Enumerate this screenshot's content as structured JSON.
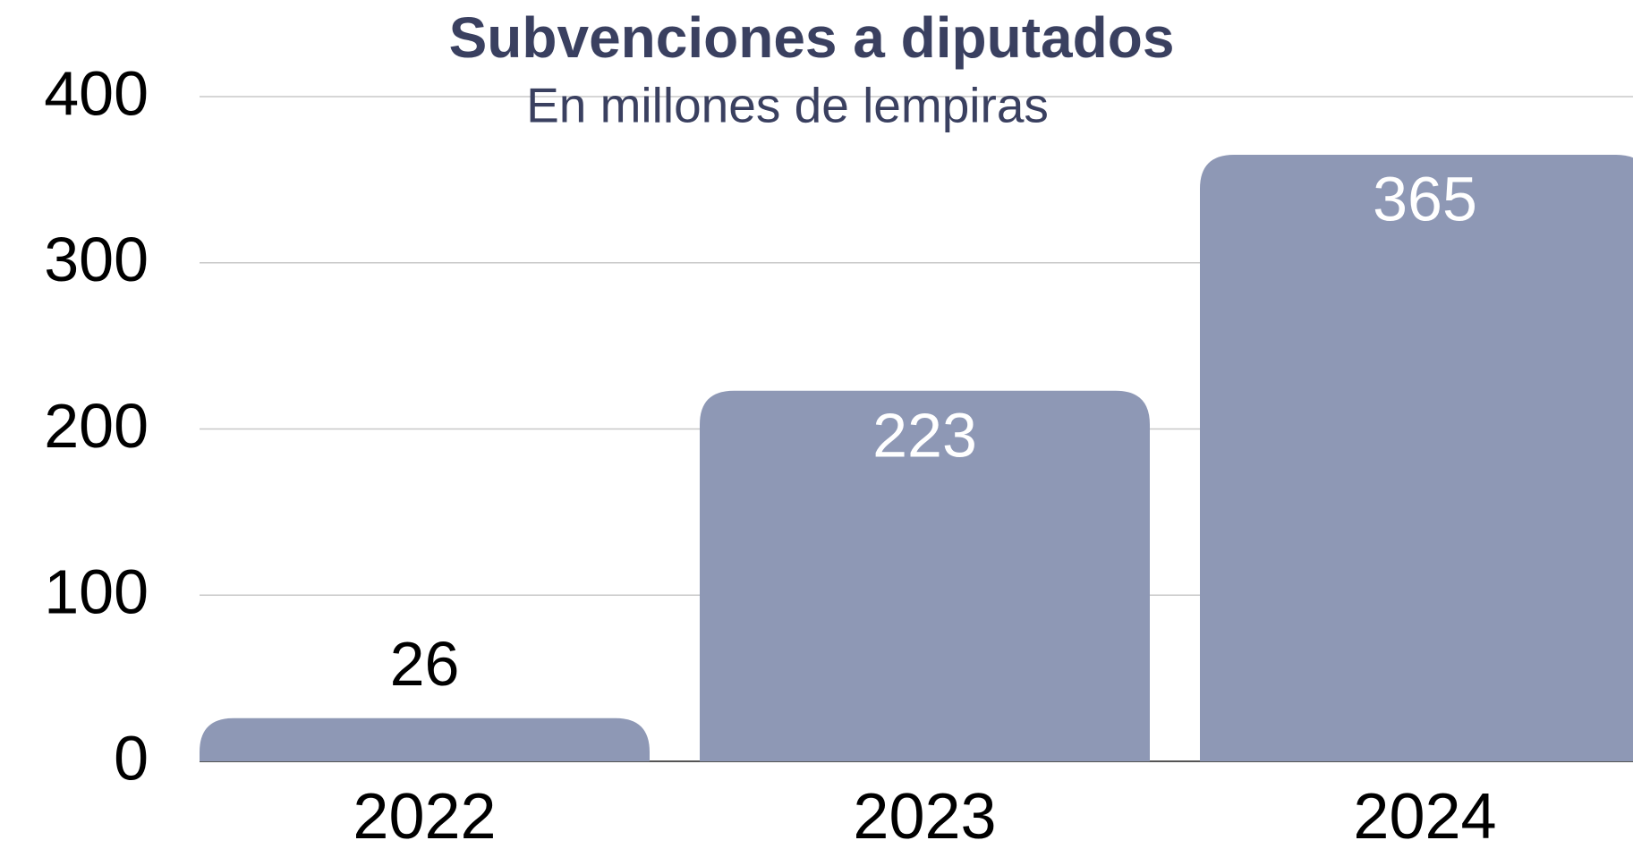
{
  "chart_data": {
    "type": "bar",
    "title": "Subvenciones a diputados",
    "subtitle": "En millones de lempiras",
    "categories": [
      "2022",
      "2023",
      "2024"
    ],
    "values": [
      26,
      223,
      365
    ],
    "color": "#8e98b5",
    "ylim": [
      0,
      400
    ],
    "yticks": [
      0,
      100,
      200,
      300,
      400
    ],
    "grid": true
  }
}
